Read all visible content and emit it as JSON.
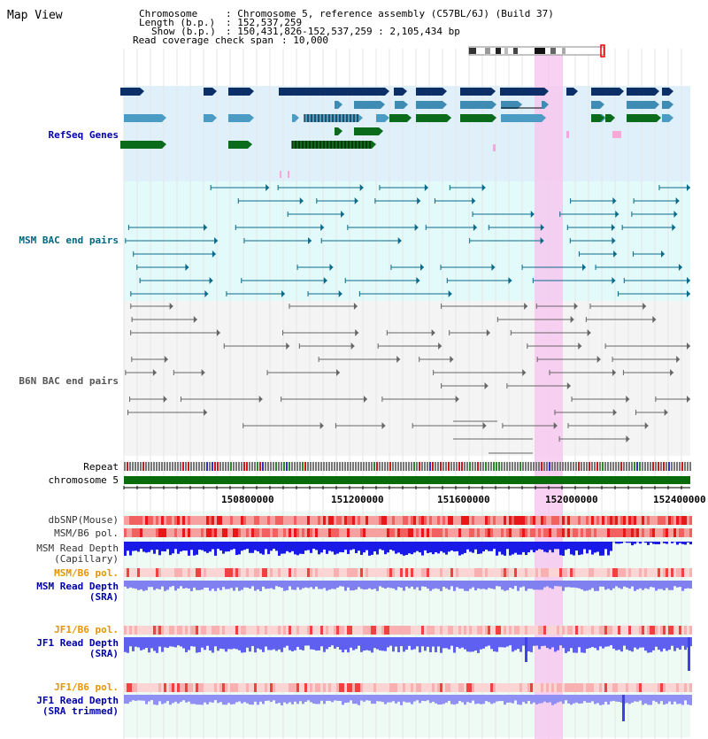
{
  "app": {
    "title": "Map View"
  },
  "info": {
    "chromosome_key": "Chromosome",
    "chromosome_val": ": Chromosome 5, reference assembly (C57BL/6J) (Build 37)",
    "length_key": "Length (b.p.)",
    "length_val": ": 152,537,259",
    "show_key": "Show (b.p.)",
    "show_val": ": 150,431,826-152,537,259 : 2,105,434 bp",
    "coverage_key": "Read coverage check span",
    "coverage_val": ": 10,000"
  },
  "tracks": {
    "refseq": "RefSeq Genes",
    "msm_bac": "MSM BAC end pairs",
    "b6n_bac": "B6N BAC end pairs",
    "repeat": "Repeat",
    "chromosome": "chromosome 5",
    "dbsnp": "dbSNP(Mouse)",
    "msm_b6_pol1": "MSM/B6 pol.",
    "msm_depth_cap_1": "MSM Read Depth",
    "msm_depth_cap_2": "(Capillary)",
    "msm_b6_pol2": "MSM/B6 pol.",
    "msm_depth_sra_1": "MSM Read Depth",
    "msm_depth_sra_2": "(SRA)",
    "jf1_b6_pol1": "JF1/B6 pol.",
    "jf1_depth_1": "JF1 Read Depth",
    "jf1_depth_2": "(SRA)",
    "jf1_b6_pol2": "JF1/B6 pol.",
    "jf1_trim_1": "JF1 Read Depth",
    "jf1_trim_2": "(SRA trimmed)"
  },
  "axis": {
    "ticks": [
      "150800000",
      "151200000",
      "151600000",
      "152000000",
      "152400000"
    ]
  },
  "colors": {
    "refseq_label": "#0000aa",
    "msm_label": "#006680",
    "b6n_label": "#555555",
    "pol_label": "#e69500",
    "depth_label": "#0000aa",
    "highlight": "#f7c6ef"
  }
}
